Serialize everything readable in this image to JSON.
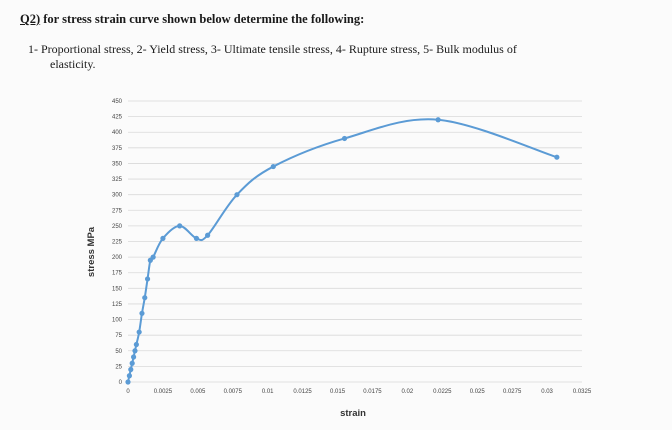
{
  "question": {
    "number": "Q2)",
    "text": " for stress strain curve shown below determine the following:",
    "items_line1": "1-  Proportional stress, 2- Yield stress, 3- Ultimate tensile stress, 4- Rupture stress,  5- Bulk modulus of",
    "items_line2": "elasticity."
  },
  "chart_data": {
    "type": "line",
    "title": "",
    "xlabel": "strain",
    "ylabel": "stress  MPa",
    "xlim": [
      0,
      0.0325
    ],
    "ylim": [
      0,
      450
    ],
    "grid": true,
    "line_color": "#5b9bd5",
    "grid_color": "#d9d9d9",
    "x_ticks": [
      "0",
      "0.0025",
      "0.005",
      "0.0075",
      "0.01",
      "0.0125",
      "0.015",
      "0.0175",
      "0.02",
      "0.0225",
      "0.025",
      "0.0275",
      "0.03",
      "0.0325"
    ],
    "y_ticks": [
      "0",
      "25",
      "50",
      "75",
      "100",
      "125",
      "150",
      "175",
      "200",
      "225",
      "250",
      "275",
      "300",
      "325",
      "350",
      "375",
      "400",
      "425",
      "450"
    ],
    "series": [
      {
        "x": [
          0,
          0.0001,
          0.0002,
          0.0003,
          0.0004,
          0.0005,
          0.0006,
          0.0008,
          0.001,
          0.0012,
          0.0014,
          0.0016,
          0.0018,
          0.0025,
          0.0037,
          0.0049,
          0.0057,
          0.0078,
          0.0104,
          0.0155,
          0.0222,
          0.0307
        ],
        "y": [
          0,
          10,
          20,
          30,
          40,
          50,
          60,
          80,
          110,
          135,
          165,
          195,
          200,
          230,
          250,
          230,
          235,
          300,
          345,
          390,
          420,
          360
        ]
      }
    ]
  }
}
